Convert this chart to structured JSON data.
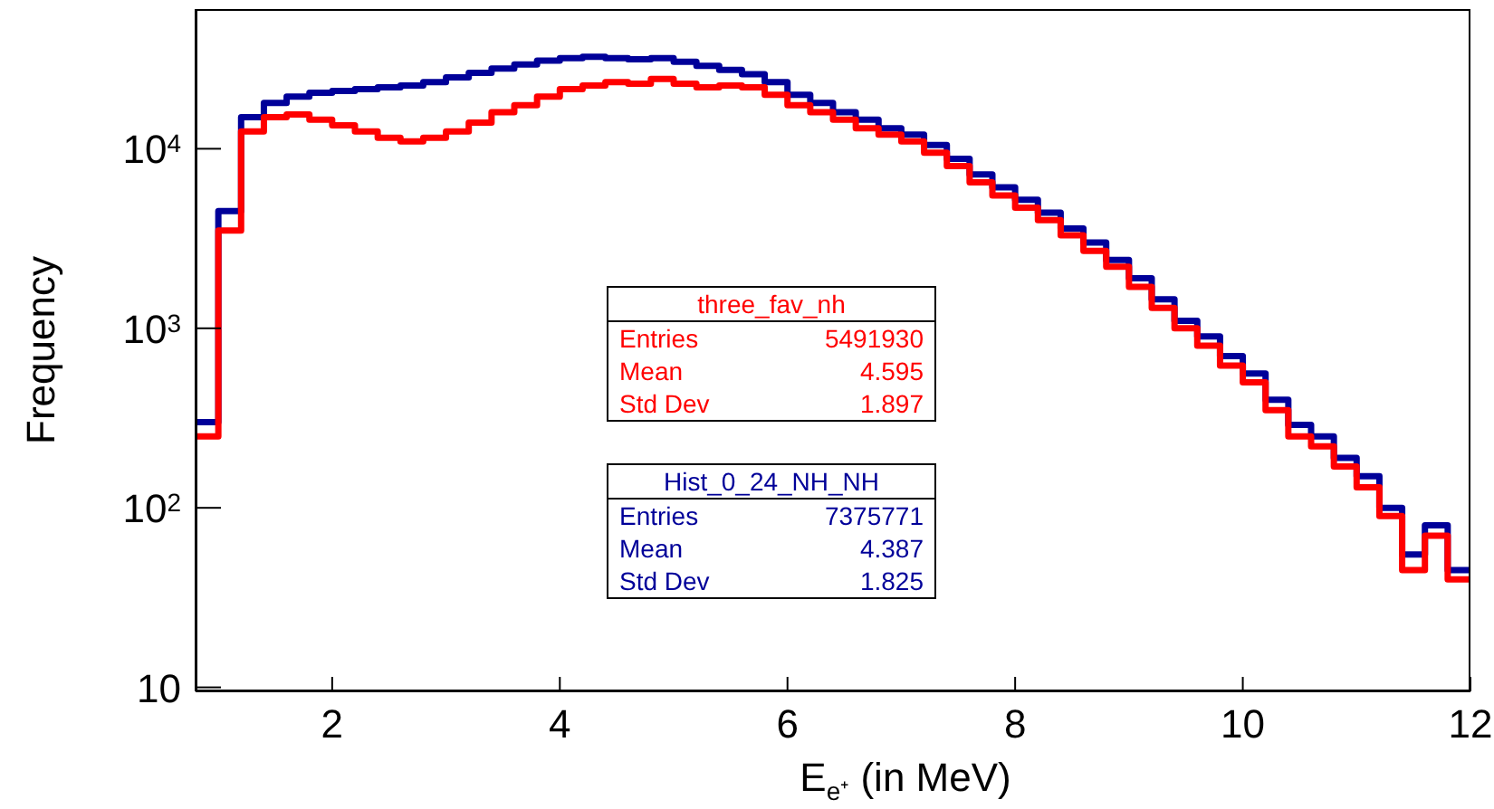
{
  "chart_data": {
    "type": "histogram",
    "xlabel": "E$_{e⁺}$ (in MeV)",
    "ylabel": "Frequency",
    "bins": [
      0.8,
      1.0,
      1.2,
      1.4,
      1.6,
      1.8,
      2.0,
      2.2,
      2.4,
      2.6,
      2.8,
      3.0,
      3.2,
      3.4,
      3.6,
      3.8,
      4.0,
      4.2,
      4.4,
      4.6,
      4.8,
      5.0,
      5.2,
      5.4,
      5.6,
      5.8,
      6.0,
      6.2,
      6.4,
      6.6,
      6.8,
      7.0,
      7.2,
      7.4,
      7.6,
      7.8,
      8.0,
      8.2,
      8.4,
      8.6,
      8.8,
      9.0,
      9.2,
      9.4,
      9.6,
      9.8,
      10.0,
      10.2,
      10.4,
      10.6,
      10.8,
      11.0,
      11.2,
      11.4,
      11.6,
      11.8,
      12.0
    ],
    "series": [
      {
        "name": "three_fav_nh",
        "color": "#ff0000",
        "values": [
          250,
          3500,
          12500,
          15000,
          15500,
          14500,
          13500,
          12500,
          11500,
          11000,
          11500,
          12500,
          14000,
          16000,
          17500,
          19500,
          21500,
          22500,
          23500,
          23000,
          24500,
          23000,
          22000,
          22500,
          22000,
          20000,
          17500,
          16000,
          14500,
          13000,
          12000,
          11000,
          9500,
          8000,
          6500,
          5500,
          4700,
          4000,
          3300,
          2700,
          2200,
          1700,
          1300,
          1000,
          800,
          620,
          500,
          350,
          250,
          220,
          170,
          130,
          90,
          45,
          70,
          40
        ]
      },
      {
        "name": "Hist_0_24_NH_NH",
        "color": "#000099",
        "values": [
          300,
          4500,
          15000,
          18000,
          19500,
          20500,
          21000,
          21500,
          22000,
          22500,
          23500,
          25000,
          26500,
          28000,
          29500,
          31000,
          32000,
          32500,
          32000,
          31500,
          32000,
          30500,
          29000,
          27500,
          26000,
          23500,
          20000,
          18000,
          16000,
          14500,
          13000,
          12000,
          10500,
          8800,
          7200,
          6100,
          5200,
          4400,
          3600,
          3000,
          2400,
          1900,
          1450,
          1100,
          900,
          700,
          560,
          400,
          290,
          250,
          190,
          150,
          100,
          55,
          80,
          45
        ]
      }
    ],
    "annotations": [
      "Entries",
      "5491930",
      "Mean",
      "4.595",
      "Std Dev",
      "1.897",
      "Entries",
      "7375771",
      "Mean",
      "4.387",
      "Std Dev",
      "1.825"
    ],
    "xlim": [
      0.8,
      12
    ],
    "xticks": [
      2,
      4,
      6,
      8,
      10,
      12
    ],
    "ylim": [
      9.5,
      60000
    ],
    "yticks": [
      10,
      {
        "value": 100,
        "label": "10$^{2}$"
      },
      {
        "value": 1000,
        "label": "10$^{3}$"
      },
      {
        "value": 10000,
        "label": "10$^{4}$"
      }
    ],
    "log": "y",
    "grid": false
  }
}
